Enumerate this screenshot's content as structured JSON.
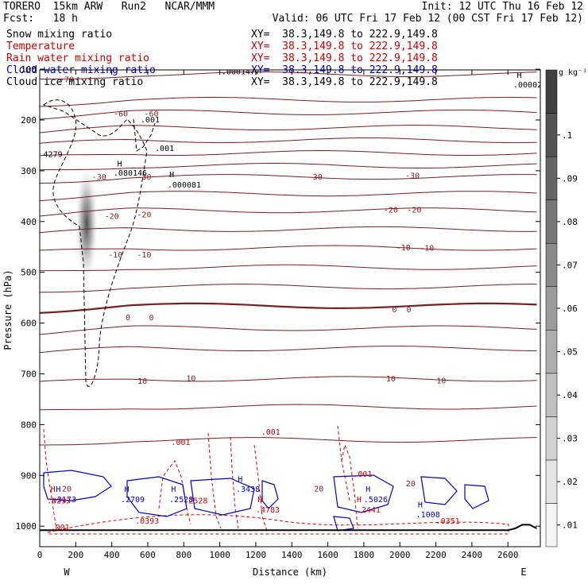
{
  "header": {
    "line1_left": "TORERO  15km ARW   Run2   NCAR/MMM",
    "line1_right": "Init: 12 UTC Thu 16 Feb 12",
    "line2_left": "Fcst:   18 h",
    "line2_right": "Valid: 06 UTC Fri 17 Feb 12 (00 CST Fri 17 Feb 12)"
  },
  "fields": [
    {
      "name": "Snow mixing ratio",
      "color": "#000000",
      "xy": "XY=  38.3,149.8 to 222.9,149.8"
    },
    {
      "name": "Temperature",
      "color": "#cc0000",
      "xy": "XY=  38.3,149.8 to 222.9,149.8"
    },
    {
      "name": "Rain water mixing ratio",
      "color": "#cc0000",
      "xy": "XY=  38.3,149.8 to 222.9,149.8"
    },
    {
      "name": "Cloud water mixing ratio",
      "color": "#0000cc",
      "xy": "XY=  38.3,149.8 to 222.9,149.8"
    },
    {
      "name": "Cloud ice mixing ratio",
      "color": "#000000",
      "xy": "XY=  38.3,149.8 to 222.9,149.8"
    }
  ],
  "chart_data": {
    "type": "line",
    "xlabel": "Distance (km)",
    "ylabel": "Pressure (hPa)",
    "xlim": [
      0,
      2780
    ],
    "ylim": [
      1010,
      100
    ],
    "x_ticks": [
      0,
      200,
      400,
      600,
      800,
      1000,
      1200,
      1400,
      1600,
      1800,
      2000,
      2200,
      2400,
      2600
    ],
    "y_ticks": [
      100,
      200,
      300,
      400,
      500,
      600,
      700,
      800,
      900,
      1000
    ],
    "x_end_labels": {
      "left": "W",
      "right": "E"
    },
    "colorbar": {
      "unit": "g kg⁻¹",
      "levels": [
        ".01",
        ".02",
        ".03",
        ".04",
        ".05",
        ".06",
        ".07",
        ".08",
        ".09",
        ".1"
      ],
      "min": 0.005,
      "max": 0.115
    },
    "isotherms_C": [
      -70,
      -60,
      -50,
      -40,
      -30,
      -20,
      -10,
      0,
      10,
      20
    ],
    "temperature_labels": [
      {
        "text": "-70",
        "x": 150,
        "p": 121
      },
      {
        "text": "-60",
        "x": 450,
        "p": 188
      },
      {
        "text": "-60",
        "x": 620,
        "p": 188
      },
      {
        "text": "-30",
        "x": 330,
        "p": 313
      },
      {
        "text": "-30",
        "x": 580,
        "p": 313
      },
      {
        "text": "-30",
        "x": 1530,
        "p": 313
      },
      {
        "text": "-30",
        "x": 2070,
        "p": 310
      },
      {
        "text": "-20",
        "x": 400,
        "p": 390
      },
      {
        "text": "-20",
        "x": 580,
        "p": 387
      },
      {
        "text": "-20",
        "x": 1950,
        "p": 378
      },
      {
        "text": "-20",
        "x": 2080,
        "p": 378
      },
      {
        "text": "-10",
        "x": 420,
        "p": 466
      },
      {
        "text": "-10",
        "x": 580,
        "p": 466
      },
      {
        "text": "-10",
        "x": 2020,
        "p": 452
      },
      {
        "text": "-10",
        "x": 2150,
        "p": 453
      },
      {
        "text": "0",
        "x": 490,
        "p": 590
      },
      {
        "text": "0",
        "x": 620,
        "p": 590
      },
      {
        "text": "0",
        "x": 1970,
        "p": 574
      },
      {
        "text": "0",
        "x": 2050,
        "p": 574
      },
      {
        "text": "10",
        "x": 570,
        "p": 715
      },
      {
        "text": "10",
        "x": 840,
        "p": 709
      },
      {
        "text": "10",
        "x": 1950,
        "p": 710
      },
      {
        "text": "10",
        "x": 2230,
        "p": 714
      },
      {
        "text": "20",
        "x": 150,
        "p": 927
      },
      {
        "text": "20",
        "x": 1550,
        "p": 927
      },
      {
        "text": "20",
        "x": 2060,
        "p": 917
      }
    ],
    "maxima_labels": [
      {
        "text": "H",
        "x": 430,
        "p": 287,
        "color": "#000000"
      },
      {
        "text": ".080146",
        "x": 410,
        "p": 305,
        "color": "#000000"
      },
      {
        "text": "H",
        "x": 720,
        "p": 308,
        "color": "#000000"
      },
      {
        "text": ".000081",
        "x": 710,
        "p": 328,
        "color": "#000000"
      },
      {
        "text": "H",
        "x": 2650,
        "p": 112,
        "color": "#000000"
      },
      {
        "text": ".00002",
        "x": 2630,
        "p": 131,
        "color": "#000000"
      },
      {
        "text": ".001",
        "x": 560,
        "p": 200,
        "color": "#000000"
      },
      {
        "text": ".001",
        "x": 640,
        "p": 256,
        "color": "#000000"
      },
      {
        "text": "4279",
        "x": 20,
        "p": 268,
        "color": "#000000"
      },
      {
        "text": ".0001477",
        "x": 1010,
        "p": 105,
        "color": "#000000"
      },
      {
        "text": "H",
        "x": 90,
        "p": 928,
        "color": "#0000cc"
      },
      {
        "text": ".3173",
        "x": 70,
        "p": 948,
        "color": "#0000cc"
      },
      {
        "text": "H",
        "x": 470,
        "p": 928,
        "color": "#0000cc"
      },
      {
        "text": ".2709",
        "x": 450,
        "p": 948,
        "color": "#0000cc"
      },
      {
        "text": "H",
        "x": 730,
        "p": 928,
        "color": "#0000cc"
      },
      {
        "text": ".2528",
        "x": 720,
        "p": 948,
        "color": "#0000cc"
      },
      {
        "text": "H",
        "x": 1100,
        "p": 908,
        "color": "#0000cc"
      },
      {
        "text": ".3438",
        "x": 1090,
        "p": 928,
        "color": "#0000cc"
      },
      {
        "text": "H",
        "x": 1810,
        "p": 928,
        "color": "#0000cc"
      },
      {
        "text": ".5026",
        "x": 1800,
        "p": 948,
        "color": "#0000cc"
      },
      {
        "text": "H",
        "x": 2100,
        "p": 958,
        "color": "#0000cc"
      },
      {
        "text": ".1008",
        "x": 2090,
        "p": 978,
        "color": "#0000cc"
      },
      {
        "text": ".001",
        "x": 730,
        "p": 835,
        "color": "#cc0000"
      },
      {
        "text": ".001",
        "x": 1230,
        "p": 815,
        "color": "#cc0000"
      },
      {
        "text": ".001",
        "x": 1740,
        "p": 898,
        "color": "#cc0000"
      },
      {
        "text": ".001",
        "x": 60,
        "p": 1003,
        "color": "#cc0000"
      },
      {
        "text": "H",
        "x": 60,
        "p": 928,
        "color": "#cc0000"
      },
      {
        "text": ".0293",
        "x": 40,
        "p": 950,
        "color": "#cc0000"
      },
      {
        "text": ".0393",
        "x": 530,
        "p": 990,
        "color": "#cc0000"
      },
      {
        "text": ".2528",
        "x": 800,
        "p": 950,
        "color": "#cc0000"
      },
      {
        "text": "H",
        "x": 1210,
        "p": 948,
        "color": "#cc0000"
      },
      {
        "text": ".4783",
        "x": 1200,
        "p": 968,
        "color": "#cc0000"
      },
      {
        "text": "H",
        "x": 1760,
        "p": 948,
        "color": "#cc0000"
      },
      {
        "text": ".2441",
        "x": 1760,
        "p": 968,
        "color": "#cc0000"
      },
      {
        "text": ".0351",
        "x": 2200,
        "p": 990,
        "color": "#cc0000"
      }
    ]
  }
}
